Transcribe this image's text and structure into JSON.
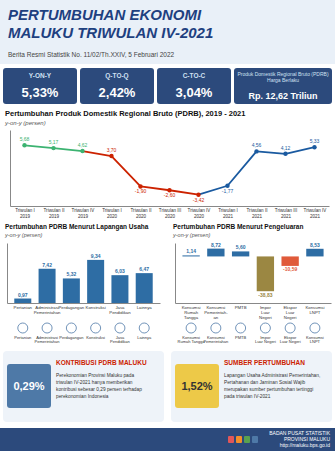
{
  "title": "PERTUMBUHAN EKONOMI\nMALUKU TRIWULAN IV-2021",
  "subtitle": "Berita Resmi Statistik No. 11/02/Th.XXIV, 5 Februari 2022",
  "kpis": [
    {
      "label": "Y-ON-Y",
      "text": "5,33%"
    },
    {
      "label": "Q-TO-Q",
      "text": "2,42%"
    },
    {
      "label": "C-TO-C",
      "text": "3,04%"
    },
    {
      "label": "Produk Domestik Regional Bruto (PDRB) Harga Berlaku",
      "text": "Rp. 12,62 Triliun"
    }
  ],
  "boxes": [
    {
      "label": "0,29%",
      "title": "KONTRIBUSI PDRB MALUKU",
      "text": "Perekonomian Provinsi Maluku pada\ntriwulan IV-2021 hanya memberikan\nkontribusi sebesar 0,29 persen terhadap\nperekonomian Indonesia"
    },
    {
      "label": "1,52%",
      "title": "SUMBER PERTUMBUHAN",
      "text": "Lapangan Usaha Administrasi Pemerintahan,\nPertahanan dan Jaminan Sosial Wajib\nmerupakan sumber pertumbuhan tertinggi\npada triwulan IV-2021"
    }
  ],
  "footer": "BADAN PUSAT STATISTIK\nPROVINSI MALUKU\nhttp://maluku.bps.go.id",
  "chart_data": [
    {
      "type": "line",
      "title": "Pertumbuhan Produk Domestik Regional Bruto (PDRB), 2019 - 2021",
      "ylabel": "y-on-y (persen)",
      "categories": [
        "Triwulan I\n2019",
        "Triwulan II\n2019",
        "Triwulan IV\n2019",
        "Triwulan I\n2020",
        "Triwulan II\n2020",
        "Triwulan III\n2020",
        "Triwulan IV\n2020",
        "Triwulan I\n2021",
        "Triwulan II\n2021",
        "Triwulan III\n2021",
        "Triwulan IV\n2021"
      ],
      "values": [
        5.68,
        5.17,
        4.62,
        3.7,
        -1.9,
        -2.6,
        -3.42,
        -1.77,
        4.56,
        4.12,
        5.33
      ],
      "value_labels": [
        "5,68",
        "5,17",
        "4,62",
        "3,70",
        "-1,90",
        "-2,60",
        "-3,42",
        "-1,77",
        "4,56",
        "4,12",
        "5,33"
      ],
      "colors": [
        "#3cb371",
        "#3cb371",
        "#3cb371",
        "#cc2200",
        "#cc2200",
        "#cc2200",
        "#cc2200",
        "#1a5aa0",
        "#1a5aa0",
        "#1a5aa0",
        "#1a5aa0"
      ],
      "ylim": [
        -5.5,
        8.5
      ],
      "yticks": [],
      "tick_labels": "x",
      "data_labels": true
    },
    {
      "type": "bar",
      "title": "Pertumbuhan  PDRB Menurut Lapangan Usaha",
      "ylabel": "y-on-y (persen)",
      "categories": [
        "Pertanian",
        "Administrasi\nPemerintahan",
        "Perdagangan",
        "Konstruksi",
        "Jasa\nPendidikan",
        "Lainnya"
      ],
      "values": [
        0.97,
        7.42,
        5.32,
        9.34,
        6.03,
        6.47
      ],
      "value_labels": [
        "0,97",
        "7,42",
        "5,32",
        "9,34",
        "6,03",
        "6,47"
      ],
      "color": "#2e6da4",
      "ylim": [
        0,
        13
      ],
      "yticks": [],
      "tick_labels": "x",
      "data_labels": true,
      "annotations": [
        "Pertanian",
        "Administrasi\nPemerintahan",
        "Perdagangan",
        "Konstruksi",
        "Jasa\nPendidikan",
        "Lainnya"
      ]
    },
    {
      "type": "bar",
      "title": "Pertumbuhan  PDRB Menurut Pengeluaran",
      "ylabel": "y-on-y (persen)",
      "categories": [
        "Konsumsi\nRumah\nTangga",
        "Konsumsi\nPemerintah-\nan",
        "PMTB",
        "Impor\nLuar\nNegeri",
        "Ekspor\nLuar\nNegeri",
        "Konsumsi\nLNPT"
      ],
      "values": [
        1.14,
        8.72,
        5.6,
        -38.83,
        -10.59,
        8.53
      ],
      "value_labels": [
        "1,14",
        "8,72",
        "5,60",
        "-38,83",
        "-10,59",
        "8,53"
      ],
      "colors": [
        "#2e6da4",
        "#2e6da4",
        "#2e6da4",
        "#9b8742",
        "#e05a3a",
        "#2e6da4"
      ],
      "ylim": [
        -52,
        15
      ],
      "yticks": [],
      "tick_labels": "x",
      "data_labels": true,
      "annotations": [
        "Konsumsi\nRumah Tangga",
        "Konsumsi\nPemerintahan",
        "PMTB",
        "Impor\nLuar Negeri",
        "Ekspor\nLuar Negeri",
        "Konsumsi\nLNPT"
      ]
    }
  ]
}
